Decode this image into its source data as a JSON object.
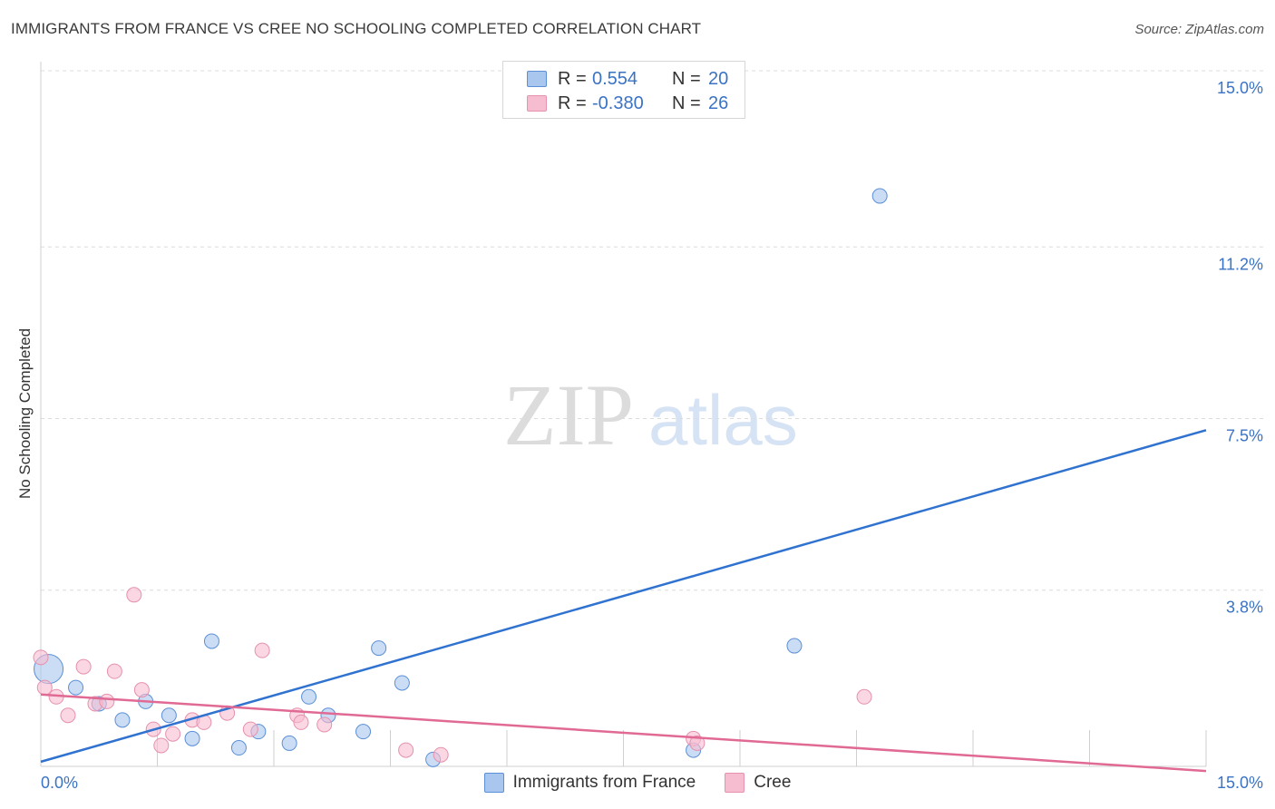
{
  "title": "IMMIGRANTS FROM FRANCE VS CREE NO SCHOOLING COMPLETED CORRELATION CHART",
  "source": "Source: ZipAtlas.com",
  "watermark": {
    "zip": "ZIP",
    "atlas": "atlas"
  },
  "colors": {
    "blue_fill": "#a9c7ee",
    "blue_stroke": "#5b8fd6",
    "blue_line": "#2f72cf",
    "pink_fill": "#f6bcd0",
    "pink_stroke": "#e691ad",
    "pink_line": "#e06a93",
    "tick_text": "#3b73c4",
    "grid": "#dcdcdc"
  },
  "legend_top": [
    {
      "r_label": "R =",
      "r_value": "0.554",
      "n_label": "N =",
      "n_value": "20"
    },
    {
      "r_label": "R =",
      "r_value": "-0.380",
      "n_label": "N =",
      "n_value": "26"
    }
  ],
  "legend_bottom": [
    "Immigrants from France",
    "Cree"
  ],
  "chart_data": {
    "type": "scatter",
    "title": "IMMIGRANTS FROM FRANCE VS CREE NO SCHOOLING COMPLETED CORRELATION CHART",
    "xlabel": "",
    "ylabel": "No Schooling Completed",
    "xlim": [
      0,
      15
    ],
    "ylim": [
      0,
      15
    ],
    "x_tick_labels": [
      "0.0%",
      "15.0%"
    ],
    "y_ticks": [
      3.8,
      7.5,
      11.2,
      15.0
    ],
    "y_tick_labels": [
      "3.8%",
      "7.5%",
      "11.2%",
      "15.0%"
    ],
    "grid": true,
    "legend_position": "top-center",
    "series": [
      {
        "name": "Immigrants from France",
        "r": 0.554,
        "n": 20,
        "trend": {
          "x": [
            0,
            15
          ],
          "y": [
            0.1,
            7.25
          ]
        },
        "points": [
          {
            "x": 0.1,
            "y": 2.1,
            "s": 3
          },
          {
            "x": 0.45,
            "y": 1.7,
            "s": 1
          },
          {
            "x": 0.75,
            "y": 1.35,
            "s": 1
          },
          {
            "x": 1.05,
            "y": 1.0,
            "s": 1
          },
          {
            "x": 1.35,
            "y": 1.4,
            "s": 1
          },
          {
            "x": 1.65,
            "y": 1.1,
            "s": 1
          },
          {
            "x": 1.95,
            "y": 0.6,
            "s": 1
          },
          {
            "x": 2.2,
            "y": 2.7,
            "s": 1
          },
          {
            "x": 2.55,
            "y": 0.4,
            "s": 1
          },
          {
            "x": 2.8,
            "y": 0.75,
            "s": 1
          },
          {
            "x": 3.2,
            "y": 0.5,
            "s": 1
          },
          {
            "x": 3.45,
            "y": 1.5,
            "s": 1
          },
          {
            "x": 3.7,
            "y": 1.1,
            "s": 1
          },
          {
            "x": 4.15,
            "y": 0.75,
            "s": 1
          },
          {
            "x": 4.35,
            "y": 2.55,
            "s": 1
          },
          {
            "x": 4.65,
            "y": 1.8,
            "s": 1
          },
          {
            "x": 5.05,
            "y": 0.15,
            "s": 1
          },
          {
            "x": 8.4,
            "y": 0.35,
            "s": 1
          },
          {
            "x": 9.7,
            "y": 2.6,
            "s": 1
          },
          {
            "x": 10.8,
            "y": 12.3,
            "s": 1
          }
        ]
      },
      {
        "name": "Cree",
        "r": -0.38,
        "n": 26,
        "trend": {
          "x": [
            0,
            15
          ],
          "y": [
            1.55,
            -0.1
          ]
        },
        "points": [
          {
            "x": 0.0,
            "y": 2.35,
            "s": 1
          },
          {
            "x": 0.2,
            "y": 1.5,
            "s": 1
          },
          {
            "x": 0.35,
            "y": 1.1,
            "s": 1
          },
          {
            "x": 0.55,
            "y": 2.15,
            "s": 1
          },
          {
            "x": 0.7,
            "y": 1.35,
            "s": 1
          },
          {
            "x": 0.85,
            "y": 1.4,
            "s": 1
          },
          {
            "x": 0.95,
            "y": 2.05,
            "s": 1
          },
          {
            "x": 1.2,
            "y": 3.7,
            "s": 1
          },
          {
            "x": 1.3,
            "y": 1.65,
            "s": 1
          },
          {
            "x": 1.45,
            "y": 0.8,
            "s": 1
          },
          {
            "x": 1.55,
            "y": 0.45,
            "s": 1
          },
          {
            "x": 1.7,
            "y": 0.7,
            "s": 1
          },
          {
            "x": 1.95,
            "y": 1.0,
            "s": 1
          },
          {
            "x": 2.1,
            "y": 0.95,
            "s": 1
          },
          {
            "x": 2.4,
            "y": 1.15,
            "s": 1
          },
          {
            "x": 2.7,
            "y": 0.8,
            "s": 1
          },
          {
            "x": 2.85,
            "y": 2.5,
            "s": 1
          },
          {
            "x": 3.3,
            "y": 1.1,
            "s": 1
          },
          {
            "x": 3.35,
            "y": 0.95,
            "s": 1
          },
          {
            "x": 3.65,
            "y": 0.9,
            "s": 1
          },
          {
            "x": 4.7,
            "y": 0.35,
            "s": 1
          },
          {
            "x": 5.15,
            "y": 0.25,
            "s": 1
          },
          {
            "x": 8.4,
            "y": 0.6,
            "s": 1
          },
          {
            "x": 8.45,
            "y": 0.5,
            "s": 1
          },
          {
            "x": 10.6,
            "y": 1.5,
            "s": 1
          },
          {
            "x": 0.05,
            "y": 1.7,
            "s": 1
          }
        ]
      }
    ]
  }
}
